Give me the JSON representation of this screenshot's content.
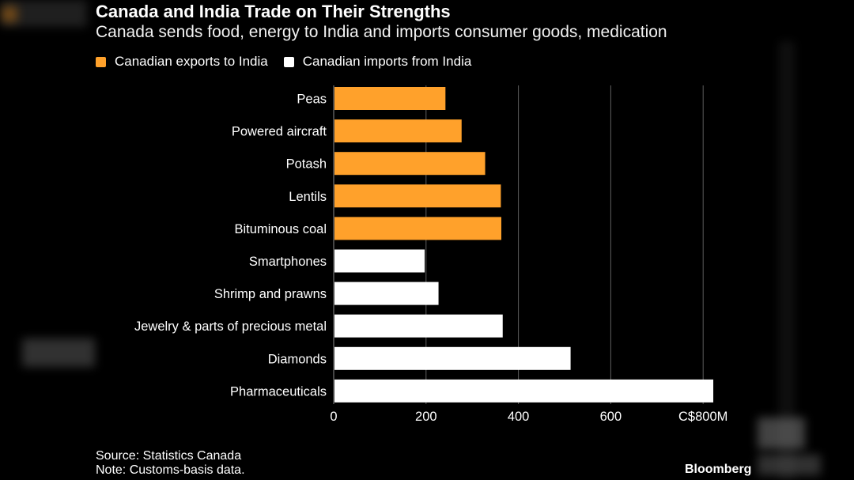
{
  "header": {
    "title": "Canada and India Trade on Their Strengths",
    "subtitle": "Canada sends food, energy to India and imports consumer goods, medication"
  },
  "legend": [
    {
      "label": "Canadian exports to India",
      "color": "#FFA12B"
    },
    {
      "label": "Canadian imports from India",
      "color": "#FFFFFF"
    }
  ],
  "chart_data": {
    "type": "bar",
    "orientation": "horizontal",
    "title": "Canada and India Trade on Their Strengths",
    "subtitle": "Canada sends food, energy to India and imports consumer goods, medication",
    "categories": [
      "Peas",
      "Powered aircraft",
      "Potash",
      "Lentils",
      "Bituminous coal",
      "Smartphones",
      "Shrimp and prawns",
      "Jewelry & parts of precious metal",
      "Diamonds",
      "Pharmaceuticals"
    ],
    "series": [
      {
        "name": "Canadian exports to India",
        "color": "#FFA12B",
        "values": [
          242,
          277,
          328,
          362,
          363,
          null,
          null,
          null,
          null,
          null
        ]
      },
      {
        "name": "Canadian imports from India",
        "color": "#FFFFFF",
        "values": [
          null,
          null,
          null,
          null,
          null,
          197,
          227,
          366,
          513,
          822
        ]
      }
    ],
    "xlim": [
      0,
      800
    ],
    "xticks": [
      0,
      200,
      400,
      600,
      800
    ],
    "xtick_labels": [
      "0",
      "200",
      "400",
      "600",
      "C$800M"
    ],
    "grid": "vertical",
    "legend_position": "top-left"
  },
  "footer": {
    "source": "Source: Statistics Canada",
    "note": "Note: Customs-basis data."
  },
  "brand": "Bloomberg"
}
